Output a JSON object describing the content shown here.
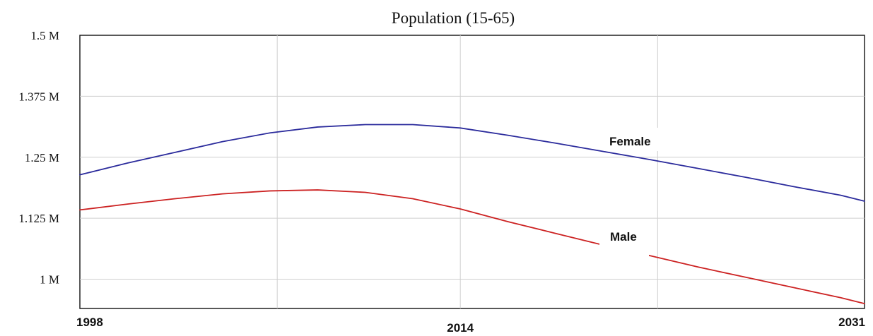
{
  "chart_data": {
    "type": "line",
    "title": "Population (15-65)",
    "xlabel": "",
    "ylabel": "",
    "xlim": [
      1998,
      2031
    ],
    "ylim": [
      0.94,
      1.5
    ],
    "x_tick_labels": [
      "1998",
      "2014",
      "2031"
    ],
    "x_tick_values": [
      1998,
      2014,
      2031
    ],
    "y_tick_labels": [
      "1.5 M",
      "1.375 M",
      "1.25 M",
      "1.125 M",
      "1 M"
    ],
    "y_tick_values": [
      1.5,
      1.375,
      1.25,
      1.125,
      1.0
    ],
    "grid": true,
    "x_grid_values": [
      1998,
      2006.3,
      2014,
      2022.3,
      2031
    ],
    "legend": "none",
    "series": [
      {
        "name": "Female",
        "color": "#2b2b9c",
        "x": [
          1998,
          2000,
          2002,
          2004,
          2006,
          2008,
          2010,
          2012,
          2014,
          2016,
          2018,
          2020,
          2022,
          2024,
          2026,
          2028,
          2030,
          2031
        ],
        "y": [
          1.214,
          1.238,
          1.26,
          1.282,
          1.3,
          1.312,
          1.317,
          1.317,
          1.31,
          1.295,
          1.279,
          1.262,
          1.245,
          1.227,
          1.209,
          1.19,
          1.172,
          1.16
        ]
      },
      {
        "name": "Male",
        "color": "#cc2222",
        "x": [
          1998,
          2000,
          2002,
          2004,
          2006,
          2008,
          2010,
          2012,
          2014,
          2016,
          2018,
          2020,
          2022,
          2024,
          2026,
          2028,
          2030,
          2031
        ],
        "y": [
          1.142,
          1.154,
          1.165,
          1.175,
          1.181,
          1.183,
          1.178,
          1.165,
          1.144,
          1.118,
          1.094,
          1.07,
          1.048,
          1.025,
          1.004,
          0.983,
          0.962,
          0.95
        ]
      }
    ]
  }
}
